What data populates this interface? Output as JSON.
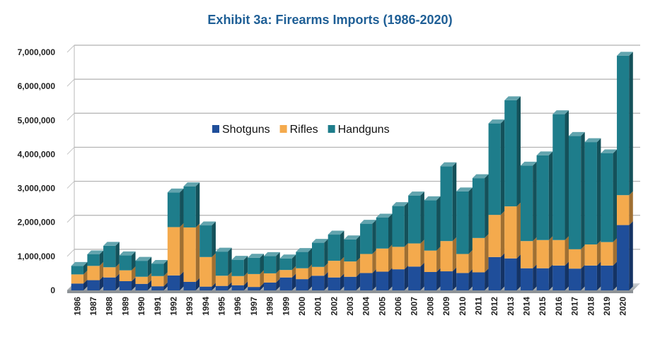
{
  "chart_data": {
    "type": "bar",
    "stacked": true,
    "title": "Exhibit 3a: Firearms Imports (1986-2020)",
    "xlabel": "",
    "ylabel": "",
    "ylim": [
      0,
      7000000
    ],
    "yticks": [
      0,
      1000000,
      2000000,
      3000000,
      4000000,
      5000000,
      6000000,
      7000000
    ],
    "ytick_labels": [
      "0",
      "1,000,000",
      "2,000,000",
      "3,000,000",
      "4,000,000",
      "5,000,000",
      "6,000,000",
      "7,000,000"
    ],
    "grid": true,
    "legend_position": "center",
    "categories": [
      "1986",
      "1987",
      "1988",
      "1989",
      "1990",
      "1991",
      "1992",
      "1993",
      "1994",
      "1995",
      "1996",
      "1997",
      "1998",
      "1999",
      "2000",
      "2001",
      "2002",
      "2003",
      "2004",
      "2005",
      "2006",
      "2007",
      "2008",
      "2009",
      "2010",
      "2011",
      "2012",
      "2013",
      "2014",
      "2015",
      "2016",
      "2017",
      "2018",
      "2019",
      "2020"
    ],
    "series": [
      {
        "name": "Shotguns",
        "color": "#1f4e9a",
        "values": [
          200000,
          300000,
          380000,
          270000,
          190000,
          120000,
          440000,
          250000,
          110000,
          130000,
          150000,
          100000,
          230000,
          380000,
          330000,
          430000,
          380000,
          400000,
          510000,
          550000,
          620000,
          700000,
          540000,
          560000,
          510000,
          530000,
          980000,
          940000,
          650000,
          650000,
          730000,
          640000,
          730000,
          730000,
          1920000
        ]
      },
      {
        "name": "Rifles",
        "color": "#f4aa4d",
        "values": [
          270000,
          420000,
          300000,
          320000,
          210000,
          300000,
          1420000,
          1600000,
          870000,
          300000,
          270000,
          380000,
          270000,
          220000,
          320000,
          260000,
          490000,
          450000,
          560000,
          680000,
          660000,
          680000,
          630000,
          890000,
          560000,
          1010000,
          1240000,
          1530000,
          800000,
          830000,
          750000,
          570000,
          620000,
          690000,
          880000
        ]
      },
      {
        "name": "Handguns",
        "color": "#1e7d8b",
        "values": [
          250000,
          340000,
          630000,
          440000,
          470000,
          360000,
          1020000,
          1210000,
          930000,
          710000,
          480000,
          480000,
          510000,
          340000,
          480000,
          710000,
          770000,
          650000,
          890000,
          910000,
          1200000,
          1410000,
          1480000,
          2200000,
          1840000,
          1760000,
          2690000,
          3120000,
          2220000,
          2490000,
          3700000,
          3330000,
          3010000,
          2610000,
          4100000
        ]
      }
    ]
  }
}
